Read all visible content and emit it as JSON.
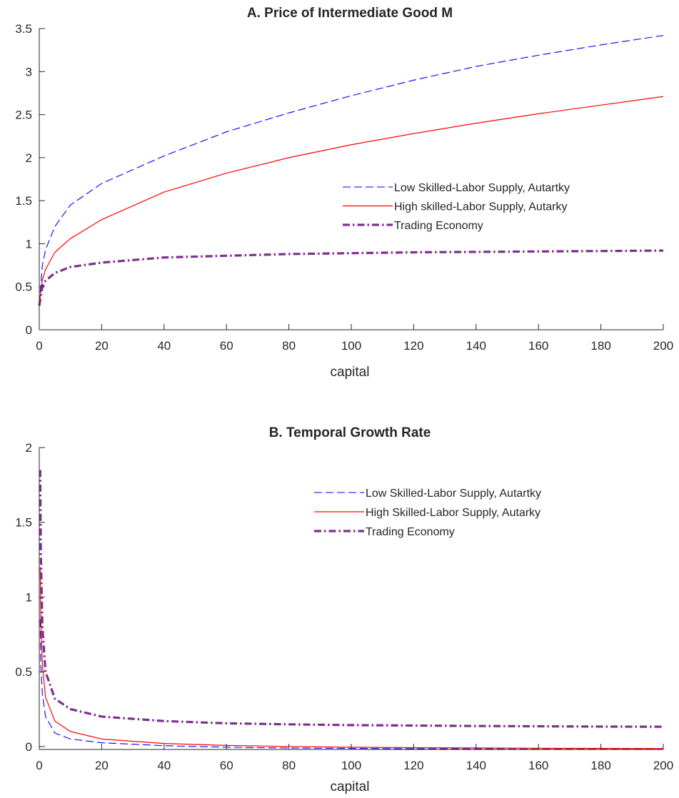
{
  "chart_data": [
    {
      "type": "line",
      "title": "A. Price of Intermediate Good M",
      "xlabel": "capital",
      "ylabel": "",
      "xlim": [
        0,
        200
      ],
      "ylim": [
        0,
        3.5
      ],
      "xticks": [
        "0",
        "20",
        "40",
        "60",
        "80",
        "100",
        "120",
        "140",
        "160",
        "180",
        "200"
      ],
      "yticks": [
        "0",
        "0.5",
        "1",
        "1.5",
        "2",
        "2.5",
        "3",
        "3.5"
      ],
      "grid": false,
      "legend_position": "center-right",
      "series": [
        {
          "name": "Low Skilled-Labor Supply, Autartky",
          "color": "#0000ff",
          "style": "dashed",
          "x": [
            0,
            1,
            2,
            5,
            10,
            20,
            40,
            60,
            80,
            100,
            120,
            140,
            160,
            180,
            200
          ],
          "values": [
            0.3,
            0.75,
            0.93,
            1.2,
            1.45,
            1.7,
            2.02,
            2.3,
            2.52,
            2.72,
            2.9,
            3.06,
            3.19,
            3.31,
            3.42
          ]
        },
        {
          "name": "High skilled-Labor Supply, Autarky",
          "color": "#ff0000",
          "style": "solid",
          "x": [
            0,
            1,
            2,
            5,
            10,
            20,
            40,
            60,
            80,
            100,
            120,
            140,
            160,
            180,
            200
          ],
          "values": [
            0.3,
            0.58,
            0.7,
            0.9,
            1.06,
            1.28,
            1.6,
            1.82,
            2.0,
            2.15,
            2.28,
            2.4,
            2.51,
            2.61,
            2.71
          ]
        },
        {
          "name": "Trading Economy",
          "color": "#7e2f8e",
          "style": "dashdot",
          "x": [
            0,
            1,
            2,
            5,
            10,
            20,
            40,
            60,
            80,
            100,
            120,
            140,
            160,
            180,
            200
          ],
          "values": [
            0.28,
            0.5,
            0.57,
            0.66,
            0.73,
            0.78,
            0.84,
            0.86,
            0.88,
            0.89,
            0.9,
            0.905,
            0.91,
            0.915,
            0.92
          ]
        }
      ]
    },
    {
      "type": "line",
      "title": "B. Temporal Growth Rate",
      "xlabel": "capital",
      "ylabel": "",
      "xlim": [
        0,
        200
      ],
      "ylim": [
        -0.02,
        2
      ],
      "xticks": [
        "0",
        "20",
        "40",
        "60",
        "80",
        "100",
        "120",
        "140",
        "160",
        "180",
        "200"
      ],
      "yticks": [
        "0",
        "0.5",
        "1",
        "1.5",
        "2"
      ],
      "grid": false,
      "legend_position": "top-right",
      "series": [
        {
          "name": "Low Skilled-Labor Supply, Autartky",
          "color": "#0000ff",
          "style": "dashed",
          "x": [
            0.3,
            0.5,
            1,
            2,
            5,
            10,
            20,
            40,
            60,
            80,
            100,
            120,
            140,
            160,
            180,
            200
          ],
          "values": [
            0.85,
            0.55,
            0.35,
            0.2,
            0.09,
            0.05,
            0.025,
            0.005,
            -0.005,
            -0.01,
            -0.013,
            -0.015,
            -0.016,
            -0.017,
            -0.018,
            -0.018
          ]
        },
        {
          "name": "High Skilled-Labor Supply, Autarky",
          "color": "#ff0000",
          "style": "solid",
          "x": [
            0.3,
            0.5,
            1,
            2,
            5,
            10,
            20,
            40,
            60,
            80,
            100,
            120,
            140,
            160,
            180,
            200
          ],
          "values": [
            1.2,
            0.85,
            0.55,
            0.33,
            0.17,
            0.1,
            0.05,
            0.02,
            0.007,
            0.0,
            -0.005,
            -0.008,
            -0.01,
            -0.012,
            -0.013,
            -0.014
          ]
        },
        {
          "name": "Trading Economy",
          "color": "#7e2f8e",
          "style": "dashdot",
          "x": [
            0.3,
            0.5,
            1,
            2,
            5,
            10,
            20,
            40,
            60,
            80,
            100,
            120,
            140,
            160,
            180,
            200
          ],
          "values": [
            1.85,
            1.3,
            0.8,
            0.5,
            0.32,
            0.25,
            0.2,
            0.17,
            0.155,
            0.148,
            0.143,
            0.14,
            0.137,
            0.135,
            0.133,
            0.132
          ]
        }
      ]
    }
  ]
}
